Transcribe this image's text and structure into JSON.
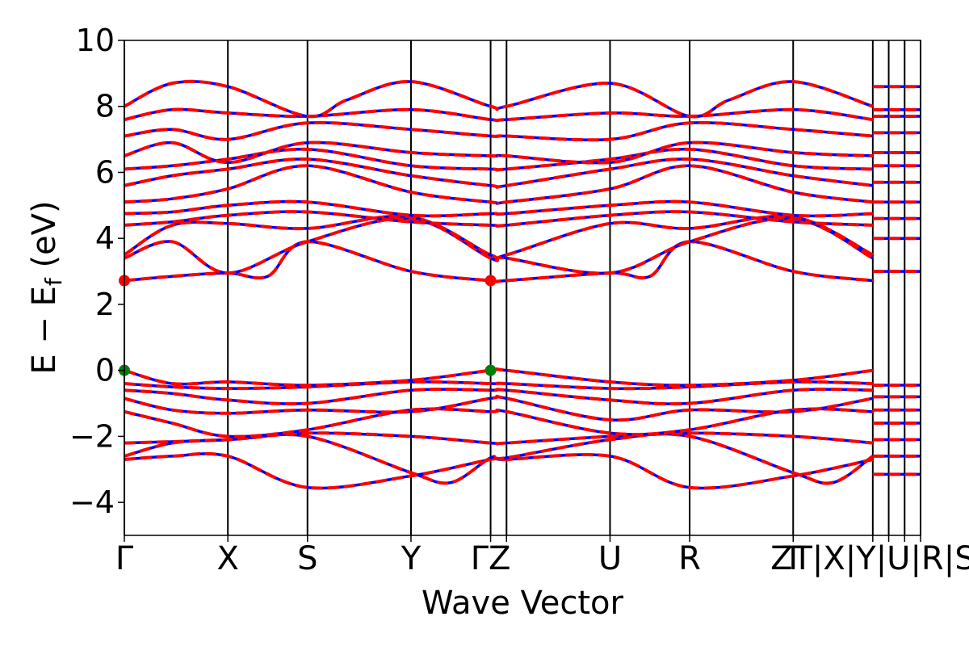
{
  "chart_data": {
    "type": "line",
    "title": "",
    "xlabel": "Wave Vector",
    "ylabel": {
      "parts": [
        "E",
        " − ",
        "E",
        "f",
        " (eV)"
      ]
    },
    "ylim": [
      -5,
      10
    ],
    "yticks": [
      -4,
      -2,
      0,
      2,
      4,
      6,
      8,
      10
    ],
    "ytick_labels": [
      "−4",
      "−2",
      "0",
      "2",
      "4",
      "6",
      "8",
      "10"
    ],
    "grid": false,
    "legend": "none",
    "high_symmetry_points": [
      {
        "label": "Γ",
        "x": 0.0
      },
      {
        "label": "X",
        "x": 0.13
      },
      {
        "label": "S",
        "x": 0.23
      },
      {
        "label": "Y",
        "x": 0.36
      },
      {
        "label": "ΓZ",
        "x": 0.46
      },
      {
        "label": "Z",
        "x": 0.48,
        "line_only": true
      },
      {
        "label": "U",
        "x": 0.61
      },
      {
        "label": "R",
        "x": 0.71
      },
      {
        "label": "T",
        "x": 0.84
      },
      {
        "label": "ZT|X|Y|U|R|S",
        "x": 0.94
      },
      {
        "label": "",
        "x": 0.96,
        "line_only": true
      },
      {
        "label": "",
        "x": 0.98,
        "line_only": true
      },
      {
        "label": "",
        "x": 1.0,
        "line_only": true
      }
    ],
    "series_colors": {
      "blue": "#0000ff",
      "red": "#ff0000"
    },
    "vbm_points": [
      {
        "x": 0.0,
        "y": 0.0
      },
      {
        "x": 0.46,
        "y": 0.0
      }
    ],
    "cbm_points": [
      {
        "x": 0.0,
        "y": 2.72
      },
      {
        "x": 0.46,
        "y": 2.72
      }
    ],
    "extrema_colors": {
      "vbm": "#008000",
      "cbm": "#ff0000"
    },
    "bands": [
      {
        "x": [
          0,
          0.06,
          0.13,
          0.23,
          0.36,
          0.46,
          0.48,
          0.61,
          0.71,
          0.84,
          0.94
        ],
        "y": [
          -2.7,
          -2.6,
          -2.6,
          -3.55,
          -3.2,
          -2.7,
          -2.7,
          -2.6,
          -3.55,
          -3.2,
          -2.7
        ]
      },
      {
        "x": [
          0,
          0.06,
          0.13,
          0.23,
          0.36,
          0.41,
          0.46,
          0.48,
          0.61,
          0.71,
          0.84,
          0.89,
          0.94
        ],
        "y": [
          -2.6,
          -2.2,
          -2.1,
          -2.0,
          -3.1,
          -3.4,
          -2.65,
          -2.65,
          -2.1,
          -2.0,
          -3.1,
          -3.4,
          -2.6
        ]
      },
      {
        "x": [
          0,
          0.13,
          0.23,
          0.36,
          0.46,
          0.48,
          0.61,
          0.71,
          0.84,
          0.94
        ],
        "y": [
          -2.2,
          -2.1,
          -1.9,
          -2.0,
          -2.2,
          -2.2,
          -2.0,
          -1.9,
          -2.0,
          -2.2
        ]
      },
      {
        "x": [
          0,
          0.06,
          0.13,
          0.23,
          0.36,
          0.46,
          0.48,
          0.61,
          0.71,
          0.84,
          0.94
        ],
        "y": [
          -1.25,
          -1.6,
          -2.0,
          -1.8,
          -1.2,
          -1.25,
          -1.25,
          -1.9,
          -1.8,
          -1.2,
          -1.25
        ]
      },
      {
        "x": [
          0,
          0.06,
          0.13,
          0.23,
          0.36,
          0.46,
          0.48,
          0.61,
          0.71,
          0.84,
          0.94
        ],
        "y": [
          -0.85,
          -1.2,
          -1.3,
          -1.2,
          -1.25,
          -0.85,
          -0.85,
          -1.5,
          -1.2,
          -1.25,
          -0.85
        ]
      },
      {
        "x": [
          0,
          0.06,
          0.13,
          0.23,
          0.36,
          0.46,
          0.48,
          0.61,
          0.71,
          0.84,
          0.94
        ],
        "y": [
          -0.6,
          -0.7,
          -0.9,
          -1.0,
          -0.6,
          -0.6,
          -0.6,
          -0.9,
          -1.0,
          -0.6,
          -0.6
        ]
      },
      {
        "x": [
          0,
          0.06,
          0.13,
          0.23,
          0.36,
          0.46,
          0.48,
          0.61,
          0.71,
          0.84,
          0.94
        ],
        "y": [
          -0.4,
          -0.5,
          -0.55,
          -0.5,
          -0.35,
          -0.4,
          -0.4,
          -0.55,
          -0.5,
          -0.35,
          -0.4
        ]
      },
      {
        "x": [
          0,
          0.06,
          0.13,
          0.23,
          0.36,
          0.46,
          0.48,
          0.61,
          0.71,
          0.84,
          0.94
        ],
        "y": [
          0.0,
          -0.4,
          -0.35,
          -0.45,
          -0.3,
          0.0,
          0.0,
          -0.35,
          -0.45,
          -0.3,
          0.0
        ]
      },
      {
        "x": [
          0,
          0.06,
          0.13,
          0.18,
          0.23,
          0.36,
          0.46,
          0.48,
          0.61,
          0.66,
          0.71,
          0.84,
          0.94
        ],
        "y": [
          2.72,
          2.85,
          2.95,
          2.85,
          3.9,
          3.0,
          2.72,
          2.72,
          2.95,
          2.85,
          3.9,
          3.0,
          2.72
        ]
      },
      {
        "x": [
          0,
          0.06,
          0.13,
          0.23,
          0.36,
          0.46,
          0.48,
          0.61,
          0.71,
          0.84,
          0.94
        ],
        "y": [
          3.4,
          3.9,
          2.95,
          3.9,
          4.6,
          3.4,
          3.4,
          2.95,
          3.9,
          4.6,
          3.4
        ]
      },
      {
        "x": [
          0,
          0.06,
          0.13,
          0.23,
          0.36,
          0.46,
          0.48,
          0.61,
          0.71,
          0.84,
          0.94
        ],
        "y": [
          3.5,
          4.4,
          4.45,
          4.3,
          4.65,
          3.5,
          3.5,
          4.45,
          4.3,
          4.65,
          3.5
        ]
      },
      {
        "x": [
          0,
          0.06,
          0.13,
          0.23,
          0.36,
          0.46,
          0.48,
          0.61,
          0.71,
          0.84,
          0.94
        ],
        "y": [
          4.4,
          4.5,
          4.7,
          4.8,
          4.5,
          4.4,
          4.4,
          4.7,
          4.8,
          4.5,
          4.4
        ]
      },
      {
        "x": [
          0,
          0.06,
          0.13,
          0.23,
          0.36,
          0.46,
          0.48,
          0.61,
          0.71,
          0.84,
          0.94
        ],
        "y": [
          4.75,
          4.8,
          5.0,
          5.1,
          4.7,
          4.75,
          4.75,
          5.0,
          5.1,
          4.7,
          4.75
        ]
      },
      {
        "x": [
          0,
          0.06,
          0.13,
          0.23,
          0.36,
          0.46,
          0.48,
          0.61,
          0.71,
          0.84,
          0.94
        ],
        "y": [
          5.1,
          5.2,
          5.5,
          6.2,
          5.4,
          5.1,
          5.1,
          5.5,
          6.2,
          5.4,
          5.1
        ]
      },
      {
        "x": [
          0,
          0.06,
          0.13,
          0.23,
          0.36,
          0.46,
          0.48,
          0.61,
          0.71,
          0.84,
          0.94
        ],
        "y": [
          5.6,
          5.9,
          6.1,
          6.4,
          5.9,
          5.6,
          5.6,
          6.1,
          6.4,
          5.9,
          5.6
        ]
      },
      {
        "x": [
          0,
          0.06,
          0.13,
          0.23,
          0.36,
          0.46,
          0.48,
          0.61,
          0.71,
          0.84,
          0.94
        ],
        "y": [
          6.1,
          6.2,
          6.4,
          6.7,
          6.2,
          6.1,
          6.1,
          6.4,
          6.7,
          6.2,
          6.1
        ]
      },
      {
        "x": [
          0,
          0.06,
          0.13,
          0.23,
          0.36,
          0.46,
          0.48,
          0.61,
          0.71,
          0.84,
          0.94
        ],
        "y": [
          6.5,
          6.9,
          6.3,
          6.9,
          6.6,
          6.5,
          6.5,
          6.3,
          6.9,
          6.6,
          6.5
        ]
      },
      {
        "x": [
          0,
          0.06,
          0.13,
          0.23,
          0.36,
          0.46,
          0.48,
          0.61,
          0.71,
          0.84,
          0.94
        ],
        "y": [
          7.1,
          7.3,
          7.0,
          7.5,
          7.3,
          7.1,
          7.1,
          7.0,
          7.5,
          7.3,
          7.1
        ]
      },
      {
        "x": [
          0,
          0.06,
          0.13,
          0.23,
          0.36,
          0.46,
          0.48,
          0.61,
          0.71,
          0.84,
          0.94
        ],
        "y": [
          7.6,
          7.9,
          7.8,
          7.7,
          7.9,
          7.6,
          7.6,
          7.8,
          7.7,
          7.9,
          7.6
        ]
      },
      {
        "x": [
          0,
          0.06,
          0.13,
          0.23,
          0.28,
          0.36,
          0.46,
          0.48,
          0.61,
          0.71,
          0.76,
          0.84,
          0.94
        ],
        "y": [
          8.0,
          8.7,
          8.6,
          7.7,
          8.2,
          8.75,
          8.0,
          8.0,
          8.7,
          7.7,
          8.2,
          8.75,
          8.0
        ]
      }
    ]
  }
}
